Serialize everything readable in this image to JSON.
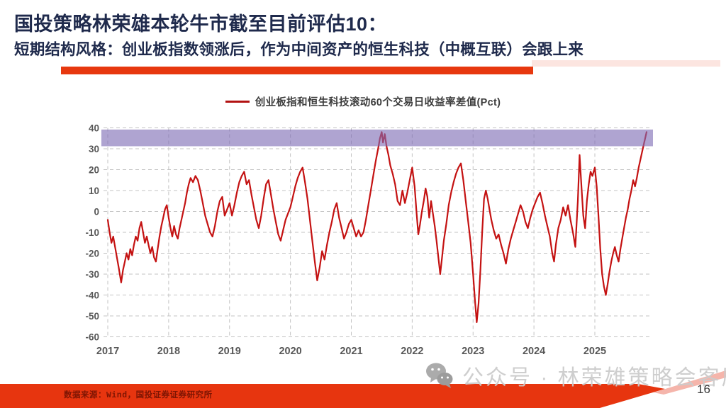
{
  "header": {
    "title": "国投策略林荣雄本轮牛市截至目前评估10：",
    "subtitle": "短期结构风格：创业板指数领涨后，作为中间资产的恒生科技（中概互联）会跟上来"
  },
  "footer": {
    "source": "数据来源：Wind，国投证券证券研究所",
    "watermark_icon": "wechat-icon",
    "watermark_text": "公众号 · 林荣雄策略会客厅",
    "page_number": "16"
  },
  "colors": {
    "title_navy": "#1F2A4C",
    "accent_red": "#E7380F",
    "series_red": "#C41212",
    "band_purple": "rgba(126,108,180,0.62)",
    "grid_gray": "#C3C3C3"
  },
  "chart_data": {
    "type": "line",
    "title": "创业板指和恒生科技滚动60个交易日收益率差值(Pct)",
    "xlabel": "",
    "ylabel": "",
    "xlim": [
      2016.93,
      2025.92
    ],
    "ylim": [
      -60,
      40
    ],
    "x_ticks": [
      2017,
      2018,
      2019,
      2020,
      2021,
      2022,
      2023,
      2024,
      2025
    ],
    "y_ticks": [
      40,
      30,
      20,
      10,
      0,
      -10,
      -20,
      -30,
      -40,
      -50,
      -60
    ],
    "grid": "dashed",
    "legend_position": "top-center",
    "highlight_band": {
      "from": 31.2,
      "to": 39.2,
      "color": "rgba(126,108,180,0.62)"
    },
    "series": [
      {
        "name": "创业板指和恒生科技滚动60个交易日收益率差值(Pct)",
        "color": "#C41212",
        "points": [
          [
            2017.0,
            -4
          ],
          [
            2017.03,
            -10
          ],
          [
            2017.06,
            -15
          ],
          [
            2017.09,
            -12
          ],
          [
            2017.12,
            -17
          ],
          [
            2017.15,
            -22
          ],
          [
            2017.18,
            -27
          ],
          [
            2017.22,
            -34
          ],
          [
            2017.25,
            -28
          ],
          [
            2017.28,
            -24
          ],
          [
            2017.31,
            -20
          ],
          [
            2017.34,
            -23
          ],
          [
            2017.37,
            -18
          ],
          [
            2017.4,
            -21
          ],
          [
            2017.43,
            -16
          ],
          [
            2017.46,
            -12
          ],
          [
            2017.49,
            -14
          ],
          [
            2017.52,
            -8
          ],
          [
            2017.55,
            -5
          ],
          [
            2017.58,
            -10
          ],
          [
            2017.61,
            -15
          ],
          [
            2017.64,
            -12
          ],
          [
            2017.67,
            -16
          ],
          [
            2017.7,
            -20
          ],
          [
            2017.73,
            -17
          ],
          [
            2017.76,
            -22
          ],
          [
            2017.79,
            -24
          ],
          [
            2017.82,
            -18
          ],
          [
            2017.85,
            -12
          ],
          [
            2017.88,
            -7
          ],
          [
            2017.91,
            -3
          ],
          [
            2017.94,
            1
          ],
          [
            2017.97,
            3
          ],
          [
            2018.0,
            -3
          ],
          [
            2018.03,
            -8
          ],
          [
            2018.06,
            -12
          ],
          [
            2018.09,
            -7
          ],
          [
            2018.12,
            -11
          ],
          [
            2018.15,
            -13
          ],
          [
            2018.18,
            -8
          ],
          [
            2018.21,
            -4
          ],
          [
            2018.24,
            0
          ],
          [
            2018.27,
            4
          ],
          [
            2018.3,
            9
          ],
          [
            2018.33,
            13
          ],
          [
            2018.36,
            16
          ],
          [
            2018.4,
            14
          ],
          [
            2018.44,
            17
          ],
          [
            2018.48,
            15
          ],
          [
            2018.52,
            10
          ],
          [
            2018.56,
            4
          ],
          [
            2018.6,
            -2
          ],
          [
            2018.64,
            -6
          ],
          [
            2018.68,
            -10
          ],
          [
            2018.72,
            -12
          ],
          [
            2018.76,
            -7
          ],
          [
            2018.8,
            0
          ],
          [
            2018.84,
            5
          ],
          [
            2018.88,
            7
          ],
          [
            2018.92,
            -2
          ],
          [
            2018.96,
            1
          ],
          [
            2019.0,
            4
          ],
          [
            2019.04,
            -2
          ],
          [
            2019.08,
            3
          ],
          [
            2019.12,
            9
          ],
          [
            2019.16,
            14
          ],
          [
            2019.2,
            17
          ],
          [
            2019.24,
            19
          ],
          [
            2019.28,
            13
          ],
          [
            2019.32,
            15
          ],
          [
            2019.36,
            8
          ],
          [
            2019.4,
            2
          ],
          [
            2019.44,
            -4
          ],
          [
            2019.48,
            -8
          ],
          [
            2019.52,
            -2
          ],
          [
            2019.56,
            6
          ],
          [
            2019.6,
            13
          ],
          [
            2019.64,
            15
          ],
          [
            2019.68,
            8
          ],
          [
            2019.72,
            1
          ],
          [
            2019.76,
            -5
          ],
          [
            2019.8,
            -11
          ],
          [
            2019.84,
            -14
          ],
          [
            2019.88,
            -9
          ],
          [
            2019.92,
            -4
          ],
          [
            2019.96,
            -1
          ],
          [
            2020.0,
            2
          ],
          [
            2020.04,
            7
          ],
          [
            2020.08,
            12
          ],
          [
            2020.12,
            16
          ],
          [
            2020.16,
            19
          ],
          [
            2020.2,
            21
          ],
          [
            2020.24,
            14
          ],
          [
            2020.28,
            6
          ],
          [
            2020.32,
            -4
          ],
          [
            2020.36,
            -14
          ],
          [
            2020.4,
            -24
          ],
          [
            2020.44,
            -33
          ],
          [
            2020.48,
            -27
          ],
          [
            2020.52,
            -19
          ],
          [
            2020.56,
            -23
          ],
          [
            2020.6,
            -16
          ],
          [
            2020.64,
            -10
          ],
          [
            2020.68,
            -5
          ],
          [
            2020.72,
            1
          ],
          [
            2020.76,
            4
          ],
          [
            2020.8,
            -3
          ],
          [
            2020.84,
            -8
          ],
          [
            2020.88,
            -13
          ],
          [
            2020.92,
            -10
          ],
          [
            2020.96,
            -6
          ],
          [
            2021.0,
            -4
          ],
          [
            2021.04,
            -8
          ],
          [
            2021.08,
            -12
          ],
          [
            2021.12,
            -9
          ],
          [
            2021.16,
            -12
          ],
          [
            2021.2,
            -10
          ],
          [
            2021.24,
            -4
          ],
          [
            2021.28,
            3
          ],
          [
            2021.32,
            10
          ],
          [
            2021.36,
            17
          ],
          [
            2021.4,
            24
          ],
          [
            2021.44,
            30
          ],
          [
            2021.47,
            35
          ],
          [
            2021.5,
            38
          ],
          [
            2021.52,
            33
          ],
          [
            2021.55,
            37
          ],
          [
            2021.58,
            31
          ],
          [
            2021.61,
            27
          ],
          [
            2021.64,
            22
          ],
          [
            2021.68,
            18
          ],
          [
            2021.72,
            13
          ],
          [
            2021.76,
            5
          ],
          [
            2021.8,
            3
          ],
          [
            2021.84,
            10
          ],
          [
            2021.88,
            4
          ],
          [
            2021.92,
            9
          ],
          [
            2021.96,
            15
          ],
          [
            2022.0,
            21
          ],
          [
            2022.04,
            12
          ],
          [
            2022.07,
            0
          ],
          [
            2022.1,
            -11
          ],
          [
            2022.13,
            -6
          ],
          [
            2022.16,
            0
          ],
          [
            2022.19,
            5
          ],
          [
            2022.22,
            11
          ],
          [
            2022.25,
            7
          ],
          [
            2022.28,
            -3
          ],
          [
            2022.31,
            5
          ],
          [
            2022.34,
            -1
          ],
          [
            2022.37,
            -7
          ],
          [
            2022.4,
            -14
          ],
          [
            2022.43,
            -22
          ],
          [
            2022.46,
            -30
          ],
          [
            2022.49,
            -22
          ],
          [
            2022.52,
            -14
          ],
          [
            2022.56,
            -6
          ],
          [
            2022.6,
            3
          ],
          [
            2022.64,
            9
          ],
          [
            2022.68,
            14
          ],
          [
            2022.72,
            18
          ],
          [
            2022.76,
            21
          ],
          [
            2022.8,
            23
          ],
          [
            2022.84,
            15
          ],
          [
            2022.88,
            5
          ],
          [
            2022.92,
            -5
          ],
          [
            2022.96,
            -15
          ],
          [
            2023.0,
            -30
          ],
          [
            2023.03,
            -42
          ],
          [
            2023.06,
            -53
          ],
          [
            2023.09,
            -44
          ],
          [
            2023.12,
            -28
          ],
          [
            2023.15,
            -10
          ],
          [
            2023.18,
            6
          ],
          [
            2023.21,
            10
          ],
          [
            2023.24,
            6
          ],
          [
            2023.27,
            1
          ],
          [
            2023.3,
            -4
          ],
          [
            2023.34,
            -9
          ],
          [
            2023.38,
            -13
          ],
          [
            2023.42,
            -11
          ],
          [
            2023.46,
            -16
          ],
          [
            2023.5,
            -20
          ],
          [
            2023.54,
            -25
          ],
          [
            2023.58,
            -18
          ],
          [
            2023.62,
            -13
          ],
          [
            2023.66,
            -9
          ],
          [
            2023.7,
            -5
          ],
          [
            2023.74,
            -1
          ],
          [
            2023.78,
            3
          ],
          [
            2023.82,
            0
          ],
          [
            2023.86,
            -5
          ],
          [
            2023.9,
            -8
          ],
          [
            2023.94,
            -3
          ],
          [
            2023.98,
            1
          ],
          [
            2024.02,
            4
          ],
          [
            2024.06,
            7
          ],
          [
            2024.1,
            9
          ],
          [
            2024.14,
            4
          ],
          [
            2024.18,
            -2
          ],
          [
            2024.22,
            -7
          ],
          [
            2024.26,
            -12
          ],
          [
            2024.3,
            -20
          ],
          [
            2024.33,
            -24
          ],
          [
            2024.36,
            -16
          ],
          [
            2024.4,
            -8
          ],
          [
            2024.44,
            -4
          ],
          [
            2024.48,
            2
          ],
          [
            2024.52,
            -2
          ],
          [
            2024.56,
            3
          ],
          [
            2024.6,
            -4
          ],
          [
            2024.64,
            -10
          ],
          [
            2024.68,
            -17
          ],
          [
            2024.72,
            5
          ],
          [
            2024.75,
            27
          ],
          [
            2024.78,
            12
          ],
          [
            2024.81,
            -2
          ],
          [
            2024.84,
            -8
          ],
          [
            2024.87,
            5
          ],
          [
            2024.9,
            13
          ],
          [
            2024.93,
            19
          ],
          [
            2024.96,
            17
          ],
          [
            2025.0,
            21
          ],
          [
            2025.03,
            12
          ],
          [
            2025.06,
            -2
          ],
          [
            2025.09,
            -18
          ],
          [
            2025.12,
            -30
          ],
          [
            2025.15,
            -36
          ],
          [
            2025.18,
            -40
          ],
          [
            2025.21,
            -35
          ],
          [
            2025.24,
            -29
          ],
          [
            2025.27,
            -24
          ],
          [
            2025.3,
            -20
          ],
          [
            2025.33,
            -17
          ],
          [
            2025.36,
            -21
          ],
          [
            2025.39,
            -24
          ],
          [
            2025.42,
            -18
          ],
          [
            2025.45,
            -13
          ],
          [
            2025.48,
            -8
          ],
          [
            2025.51,
            -3
          ],
          [
            2025.54,
            1
          ],
          [
            2025.57,
            6
          ],
          [
            2025.6,
            10
          ],
          [
            2025.63,
            15
          ],
          [
            2025.66,
            12
          ],
          [
            2025.69,
            16
          ],
          [
            2025.72,
            21
          ],
          [
            2025.75,
            25
          ],
          [
            2025.78,
            29
          ],
          [
            2025.81,
            33
          ],
          [
            2025.85,
            38
          ]
        ]
      }
    ]
  }
}
